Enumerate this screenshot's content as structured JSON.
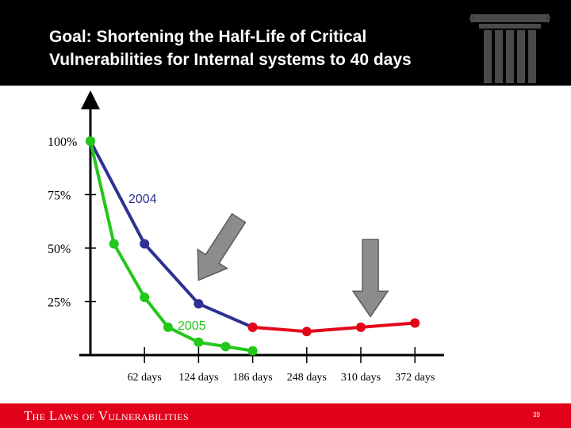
{
  "slide": {
    "title": "Goal: Shortening the Half-Life of Critical Vulnerabilities for Internal systems to 40 days",
    "footer_title": "The Laws of Vulnerabilities",
    "page_number": "39",
    "logo_icon": "column-pillar-icon"
  },
  "colors": {
    "header_bg": "#000000",
    "footer_bg": "#e2001a",
    "series_2004": "#2e3192",
    "series_2005": "#22c71a",
    "goal_line": "#e3061b",
    "arrow_fill": "#8c8c8c"
  },
  "chart_data": {
    "type": "line",
    "x_categories": [
      "",
      "62 days",
      "124 days",
      "186 days",
      "248 days",
      "310 days",
      "372 days"
    ],
    "y_ticks": [
      "25%",
      "50%",
      "75%",
      "100%"
    ],
    "ylim": [
      0,
      100
    ],
    "series": [
      {
        "name": "2004",
        "color": "#2e3192",
        "points": [
          [
            0,
            100
          ],
          [
            62,
            52
          ],
          [
            124,
            24
          ],
          [
            186,
            13
          ]
        ]
      },
      {
        "name": "2005",
        "color": "#22c71a",
        "points": [
          [
            0,
            100
          ],
          [
            27,
            52
          ],
          [
            62,
            27
          ],
          [
            89,
            13
          ],
          [
            124,
            6
          ],
          [
            155,
            4
          ],
          [
            186,
            2
          ]
        ]
      },
      {
        "name": "",
        "color": "#e3061b",
        "points": [
          [
            186,
            13
          ],
          [
            248,
            11
          ],
          [
            310,
            13
          ],
          [
            372,
            15
          ]
        ]
      }
    ],
    "annotations": [
      "2004",
      "2005"
    ],
    "arrows": [
      {
        "from": [
          170,
          64
        ],
        "to": [
          124,
          35
        ]
      },
      {
        "from": [
          321,
          54
        ],
        "to": [
          321,
          18
        ]
      }
    ]
  }
}
